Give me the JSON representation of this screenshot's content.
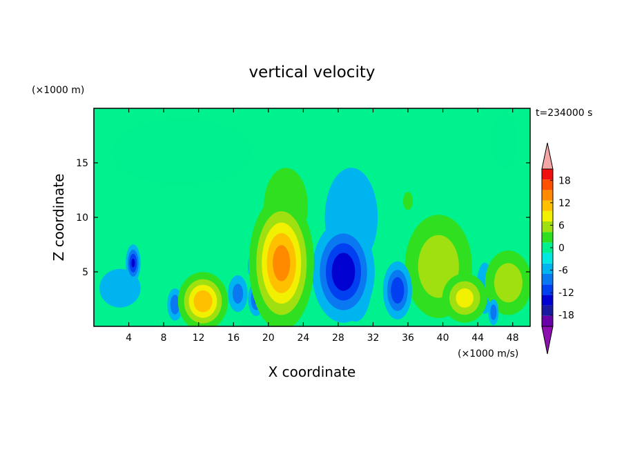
{
  "chart_data": {
    "type": "heatmap",
    "title": "vertical velocity",
    "xlabel": "X coordinate",
    "ylabel": "Z coordinate",
    "y_unit_label": "(×1000 m)",
    "colorbar_unit_label": "(×1000 m/s)",
    "time_label": "t=234000 s",
    "xlim": [
      0,
      50
    ],
    "ylim": [
      0,
      20
    ],
    "x_ticks": [
      4,
      8,
      12,
      16,
      20,
      24,
      28,
      32,
      36,
      40,
      44,
      48
    ],
    "y_ticks": [
      5,
      10,
      15
    ],
    "colorbar_ticks": [
      18,
      12,
      6,
      0,
      -6,
      -12,
      -18
    ],
    "colorbar_levels": [
      -21,
      -18,
      -15,
      -12,
      -9,
      -6,
      -3,
      0,
      3,
      6,
      9,
      12,
      15,
      18,
      21
    ],
    "colorbar_colors": [
      "#6a00a8",
      "#1a1aa0",
      "#0000d0",
      "#0040f0",
      "#0a78f0",
      "#00b4f0",
      "#00e8e0",
      "#00f090",
      "#30e020",
      "#a0e010",
      "#f0f000",
      "#ffc000",
      "#ff8a00",
      "#ff5000",
      "#f01010"
    ],
    "colorbar_over_color": "#f4a6a6",
    "colorbar_under_color": "#8e0fb0",
    "background_color": "#00f28e",
    "features": [
      {
        "x": 12.5,
        "z": 2.3,
        "w_peak": 15,
        "x_width": 1.6,
        "z_width": 1.5
      },
      {
        "x": 21.5,
        "z": 5.8,
        "w_peak": 17,
        "x_width": 2.0,
        "z_width": 3.3
      },
      {
        "x": 22.0,
        "z": 11.0,
        "w_peak": 5,
        "x_width": 2.5,
        "z_width": 3.5
      },
      {
        "x": 28.6,
        "z": 5.0,
        "w_peak": -15,
        "x_width": 2.0,
        "z_width": 2.6
      },
      {
        "x": 30.0,
        "z": 4.2,
        "w_peak": -13,
        "x_width": 1.1,
        "z_width": 2.2
      },
      {
        "x": 29.5,
        "z": 10.0,
        "w_peak": -5,
        "x_width": 3.0,
        "z_width": 4.5
      },
      {
        "x": 34.8,
        "z": 3.3,
        "w_peak": -12,
        "x_width": 1.0,
        "z_width": 1.6
      },
      {
        "x": 4.5,
        "z": 5.8,
        "w_peak": -13,
        "x_width": 0.5,
        "z_width": 1.0
      },
      {
        "x": 3.0,
        "z": 3.5,
        "w_peak": -6,
        "x_width": 2.0,
        "z_width": 1.5
      },
      {
        "x": 9.3,
        "z": 2.0,
        "w_peak": -9,
        "x_width": 0.6,
        "z_width": 1.0
      },
      {
        "x": 16.5,
        "z": 3.0,
        "w_peak": -8,
        "x_width": 0.8,
        "z_width": 1.2
      },
      {
        "x": 18.6,
        "z": 2.5,
        "w_peak": -10,
        "x_width": 0.6,
        "z_width": 1.0
      },
      {
        "x": 18.2,
        "z": 5.5,
        "w_peak": -8,
        "x_width": 0.4,
        "z_width": 0.8
      },
      {
        "x": 39.5,
        "z": 5.5,
        "w_peak": 9,
        "x_width": 2.6,
        "z_width": 3.2
      },
      {
        "x": 42.5,
        "z": 2.6,
        "w_peak": 11,
        "x_width": 1.6,
        "z_width": 1.4
      },
      {
        "x": 47.5,
        "z": 4.0,
        "w_peak": 9,
        "x_width": 1.8,
        "z_width": 2.0
      },
      {
        "x": 44.8,
        "z": 3.5,
        "w_peak": -6,
        "x_width": 0.8,
        "z_width": 2.0
      },
      {
        "x": 45.8,
        "z": 1.3,
        "w_peak": -9,
        "x_width": 0.4,
        "z_width": 0.8
      },
      {
        "x": 8.5,
        "z": 6.0,
        "w_peak": 3,
        "x_width": 1.5,
        "z_width": 1.2
      },
      {
        "x": 36.5,
        "z": 7.0,
        "w_peak": 3,
        "x_width": 1.5,
        "z_width": 4.0
      },
      {
        "x": 36.0,
        "z": 11.5,
        "w_peak": 3.5,
        "x_width": 1.0,
        "z_width": 1.5
      },
      {
        "x": 10.0,
        "z": 16.0,
        "w_peak": 1.5,
        "x_width": 8.0,
        "z_width": 3.0
      },
      {
        "x": 47.0,
        "z": 17.0,
        "w_peak": 1.5,
        "x_width": 1.5,
        "z_width": 2.5
      }
    ]
  }
}
